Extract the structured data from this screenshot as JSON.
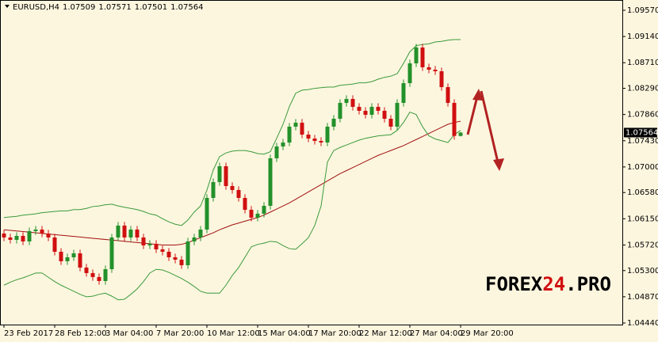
{
  "chart_data": {
    "type": "candlestick",
    "symbol": "EURUSD,H4",
    "categories": [
      "23 Feb 2017",
      null,
      null,
      null,
      null,
      null,
      null,
      null,
      "28 Feb 12:00",
      null,
      null,
      null,
      null,
      null,
      null,
      null,
      "3 Mar 04:00",
      null,
      null,
      null,
      null,
      null,
      null,
      null,
      "7 Mar 20:00",
      null,
      null,
      null,
      null,
      null,
      null,
      null,
      "10 Mar 12:00",
      null,
      null,
      null,
      null,
      null,
      null,
      null,
      "15 Mar 04:00",
      null,
      null,
      null,
      null,
      null,
      null,
      null,
      "17 Mar 20:00",
      null,
      null,
      null,
      null,
      null,
      null,
      null,
      "22 Mar 12:00",
      null,
      null,
      null,
      null,
      null,
      null,
      null,
      "27 Mar 04:00",
      null,
      null,
      null,
      null,
      null,
      null,
      null,
      "29 Mar 20:00"
    ],
    "open": [
      1.05908,
      1.05843,
      1.05804,
      1.05869,
      1.05778,
      1.05947,
      1.05973,
      1.05908,
      1.05843,
      1.05609,
      1.05453,
      1.05518,
      1.05583,
      1.05349,
      1.05259,
      1.05194,
      1.05129,
      1.05323,
      1.05843,
      1.06038,
      1.05843,
      1.05973,
      1.05843,
      1.05713,
      1.05739,
      1.05648,
      1.05609,
      1.05518,
      1.05479,
      1.05388,
      1.05778,
      1.05843,
      1.05973,
      1.06492,
      1.06752,
      1.07012,
      1.06687,
      1.06622,
      1.06492,
      1.06297,
      1.06168,
      1.06233,
      1.06362,
      1.07142,
      1.07336,
      1.07401,
      1.07661,
      1.07726,
      1.07531,
      1.07466,
      1.07427,
      1.07401,
      1.07661,
      1.07791,
      1.08051,
      1.08116,
      1.07986,
      1.07921,
      1.07856,
      1.07986,
      1.07921,
      1.07791,
      1.07661,
      1.08051,
      1.08375,
      1.087,
      1.0896,
      1.08635,
      1.08596,
      1.0857,
      1.0831,
      1.08051,
      1.07509
    ],
    "high": [
      1.05968,
      1.05903,
      1.05929,
      1.05929,
      1.06007,
      1.06033,
      1.06033,
      1.05968,
      1.05903,
      1.05669,
      1.05578,
      1.05643,
      1.05643,
      1.05409,
      1.05319,
      1.05254,
      1.05383,
      1.05903,
      1.06098,
      1.06098,
      1.06033,
      1.06033,
      1.05903,
      1.05799,
      1.05799,
      1.05708,
      1.05669,
      1.05578,
      1.05539,
      1.05838,
      1.05903,
      1.06033,
      1.06552,
      1.06812,
      1.07072,
      1.07072,
      1.06747,
      1.06682,
      1.06552,
      1.06357,
      1.06293,
      1.06422,
      1.07202,
      1.07396,
      1.07461,
      1.07721,
      1.07786,
      1.07786,
      1.07591,
      1.07526,
      1.07487,
      1.07721,
      1.07851,
      1.08111,
      1.08176,
      1.08176,
      1.08046,
      1.07981,
      1.08046,
      1.08046,
      1.07981,
      1.07851,
      1.08111,
      1.08435,
      1.0876,
      1.0902,
      1.0902,
      1.08695,
      1.08656,
      1.0863,
      1.0837,
      1.08111,
      1.07571
    ],
    "low": [
      1.05783,
      1.05744,
      1.05744,
      1.05718,
      1.05718,
      1.05887,
      1.05848,
      1.05783,
      1.05549,
      1.05393,
      1.05393,
      1.05458,
      1.05289,
      1.05199,
      1.05134,
      1.05069,
      1.05069,
      1.05263,
      1.05783,
      1.05783,
      1.05783,
      1.05783,
      1.05653,
      1.05653,
      1.05588,
      1.05549,
      1.05458,
      1.05419,
      1.05328,
      1.05328,
      1.05718,
      1.05783,
      1.05913,
      1.06432,
      1.06692,
      1.06627,
      1.06562,
      1.06432,
      1.06237,
      1.06108,
      1.06108,
      1.06173,
      1.06302,
      1.07082,
      1.07276,
      1.07341,
      1.07601,
      1.07471,
      1.07406,
      1.07367,
      1.07341,
      1.07341,
      1.07601,
      1.07731,
      1.07991,
      1.07926,
      1.07861,
      1.07796,
      1.07796,
      1.07861,
      1.07731,
      1.07601,
      1.07601,
      1.07991,
      1.08315,
      1.0864,
      1.08575,
      1.08536,
      1.0851,
      1.0825,
      1.07991,
      1.07449,
      1.07501
    ],
    "close": [
      1.05843,
      1.05804,
      1.05869,
      1.05778,
      1.05947,
      1.05973,
      1.05908,
      1.05843,
      1.05609,
      1.05453,
      1.05518,
      1.05583,
      1.05349,
      1.05259,
      1.05194,
      1.05129,
      1.05323,
      1.05843,
      1.06038,
      1.05843,
      1.05973,
      1.05843,
      1.05713,
      1.05739,
      1.05648,
      1.05609,
      1.05518,
      1.05479,
      1.05388,
      1.05778,
      1.05843,
      1.05973,
      1.06492,
      1.06752,
      1.07012,
      1.06687,
      1.06622,
      1.06492,
      1.06297,
      1.06168,
      1.06233,
      1.06362,
      1.07142,
      1.07336,
      1.07401,
      1.07661,
      1.07726,
      1.07531,
      1.07466,
      1.07427,
      1.07401,
      1.07661,
      1.07791,
      1.08051,
      1.08116,
      1.07986,
      1.07921,
      1.07856,
      1.07986,
      1.07921,
      1.07791,
      1.07661,
      1.08051,
      1.08375,
      1.087,
      1.0896,
      1.08635,
      1.08596,
      1.0857,
      1.0831,
      1.08051,
      1.07509,
      1.07564
    ],
    "up_color": "#23912a",
    "down_color": "#d01010",
    "lines": [
      {
        "color": "#a01010",
        "values": [
          1.0597,
          1.0596,
          1.0595,
          1.0594,
          1.0593,
          1.0592,
          1.0591,
          1.059,
          1.0589,
          1.0588,
          1.0587,
          1.0586,
          1.0585,
          1.0584,
          1.0583,
          1.0582,
          1.0581,
          1.058,
          1.0579,
          1.0578,
          1.0577,
          1.0576,
          1.0575,
          1.0574,
          1.0573,
          1.0572,
          1.0572,
          1.0572,
          1.0573,
          1.0576,
          1.058,
          1.0584,
          1.0588,
          1.0592,
          1.0597,
          1.0601,
          1.0605,
          1.0608,
          1.0611,
          1.0614,
          1.0617,
          1.0621,
          1.0626,
          1.0631,
          1.0636,
          1.0641,
          1.0647,
          1.0653,
          1.0659,
          1.0665,
          1.0671,
          1.0677,
          1.0683,
          1.0689,
          1.0694,
          1.0699,
          1.0704,
          1.0709,
          1.0714,
          1.0719,
          1.0723,
          1.0727,
          1.0731,
          1.0735,
          1.074,
          1.0745,
          1.075,
          1.0755,
          1.076,
          1.0765,
          1.077,
          1.0773,
          1.0775
        ]
      },
      {
        "color": "#3a9a3a",
        "values": [
          1.0617,
          1.0618,
          1.0619,
          1.0621,
          1.0622,
          1.0623,
          1.0625,
          1.0626,
          1.0627,
          1.0628,
          1.0628,
          1.063,
          1.063,
          1.0632,
          1.0635,
          1.0636,
          1.0638,
          1.0639,
          1.0636,
          1.0634,
          1.0632,
          1.063,
          1.0627,
          1.0623,
          1.0621,
          1.0615,
          1.061,
          1.0606,
          1.0604,
          1.0613,
          1.0626,
          1.0636,
          1.0662,
          1.0695,
          1.0717,
          1.0723,
          1.0726,
          1.0727,
          1.0727,
          1.0725,
          1.0722,
          1.0721,
          1.0725,
          1.0747,
          1.077,
          1.0799,
          1.0821,
          1.0826,
          1.0827,
          1.0829,
          1.083,
          1.0831,
          1.0831,
          1.0834,
          1.0835,
          1.0836,
          1.0838,
          1.0838,
          1.084,
          1.0844,
          1.0847,
          1.0849,
          1.0853,
          1.087,
          1.0889,
          1.0899,
          1.0901,
          1.0902,
          1.0905,
          1.0906,
          1.0908,
          1.0909,
          1.0909
        ]
      },
      {
        "color": "#3a9a3a",
        "values": [
          1.0506,
          1.0511,
          1.0515,
          1.0518,
          1.0522,
          1.0526,
          1.0526,
          1.0519,
          1.0512,
          1.0506,
          1.0501,
          1.0496,
          1.0491,
          1.0487,
          1.0488,
          1.0491,
          1.0493,
          1.0488,
          1.0482,
          1.0483,
          1.0491,
          1.05,
          1.0512,
          1.0526,
          1.0532,
          1.0531,
          1.0527,
          1.0522,
          1.0517,
          1.0511,
          1.0504,
          1.0496,
          1.0493,
          1.0493,
          1.0493,
          1.0506,
          1.0522,
          1.0535,
          1.0552,
          1.0569,
          1.0573,
          1.0575,
          1.0578,
          1.0577,
          1.0571,
          1.0566,
          1.0565,
          1.0574,
          1.0584,
          1.0604,
          1.0636,
          1.0708,
          1.0727,
          1.0732,
          1.0736,
          1.074,
          1.0744,
          1.0747,
          1.0749,
          1.0751,
          1.0752,
          1.0753,
          1.076,
          1.0773,
          1.079,
          1.0786,
          1.0766,
          1.0751,
          1.0746,
          1.0743,
          1.074,
          1.0753,
          1.076
        ]
      }
    ],
    "ylim": [
      1.04414,
      1.09739
    ],
    "yticks": [
      {
        "value": 1.0957,
        "label": "1.09570"
      },
      {
        "value": 1.0914,
        "label": "1.09140"
      },
      {
        "value": 1.0871,
        "label": "1.08710"
      },
      {
        "value": 1.0829,
        "label": "1.08290"
      },
      {
        "value": 1.0786,
        "label": "1.07860"
      },
      {
        "value": 1.0743,
        "label": "1.07430"
      },
      {
        "value": 1.07,
        "label": "1.07000"
      },
      {
        "value": 1.0658,
        "label": "1.06580"
      },
      {
        "value": 1.0615,
        "label": "1.06150"
      },
      {
        "value": 1.0572,
        "label": "1.05720"
      },
      {
        "value": 1.053,
        "label": "1.05300"
      },
      {
        "value": 1.0487,
        "label": "1.04870"
      },
      {
        "value": 1.0444,
        "label": "1.04440"
      }
    ],
    "watermark_parts": [
      "FOREX",
      "24",
      ".PRO"
    ]
  }
}
